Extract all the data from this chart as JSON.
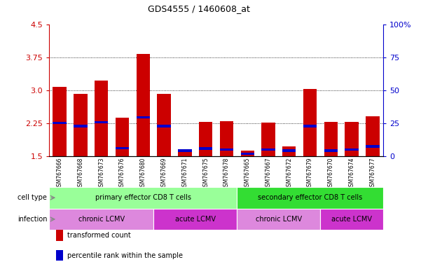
{
  "title": "GDS4555 / 1460608_at",
  "samples": [
    "GSM767666",
    "GSM767668",
    "GSM767673",
    "GSM767676",
    "GSM767680",
    "GSM767669",
    "GSM767671",
    "GSM767675",
    "GSM767678",
    "GSM767665",
    "GSM767667",
    "GSM767672",
    "GSM767679",
    "GSM767670",
    "GSM767674",
    "GSM767677"
  ],
  "bar_values": [
    3.07,
    2.92,
    3.22,
    2.38,
    3.82,
    2.92,
    1.62,
    2.27,
    2.3,
    1.62,
    2.26,
    1.72,
    3.02,
    2.27,
    2.28,
    2.4
  ],
  "blue_values": [
    2.25,
    2.18,
    2.27,
    1.68,
    2.38,
    2.18,
    1.62,
    1.67,
    1.65,
    1.55,
    1.65,
    1.62,
    2.18,
    1.62,
    1.65,
    1.72
  ],
  "ymin": 1.5,
  "ymax": 4.5,
  "yticks_left": [
    1.5,
    2.25,
    3.0,
    3.75,
    4.5
  ],
  "yticks_right": [
    0,
    25,
    50,
    75,
    100
  ],
  "bar_color": "#cc0000",
  "blue_color": "#0000cc",
  "cell_type_groups": [
    {
      "label": "primary effector CD8 T cells",
      "start": 0,
      "end": 8,
      "color": "#99ff99"
    },
    {
      "label": "secondary effector CD8 T cells",
      "start": 9,
      "end": 15,
      "color": "#33dd33"
    }
  ],
  "infection_groups": [
    {
      "label": "chronic LCMV",
      "start": 0,
      "end": 4,
      "color": "#dd88dd"
    },
    {
      "label": "acute LCMV",
      "start": 5,
      "end": 8,
      "color": "#cc33cc"
    },
    {
      "label": "chronic LCMV",
      "start": 9,
      "end": 12,
      "color": "#dd88dd"
    },
    {
      "label": "acute LCMV",
      "start": 13,
      "end": 15,
      "color": "#cc33cc"
    }
  ],
  "legend_items": [
    {
      "label": "transformed count",
      "color": "#cc0000"
    },
    {
      "label": "percentile rank within the sample",
      "color": "#0000cc"
    }
  ],
  "tick_bg_color": "#cccccc",
  "cell_type_label": "cell type",
  "infection_label": "infection"
}
